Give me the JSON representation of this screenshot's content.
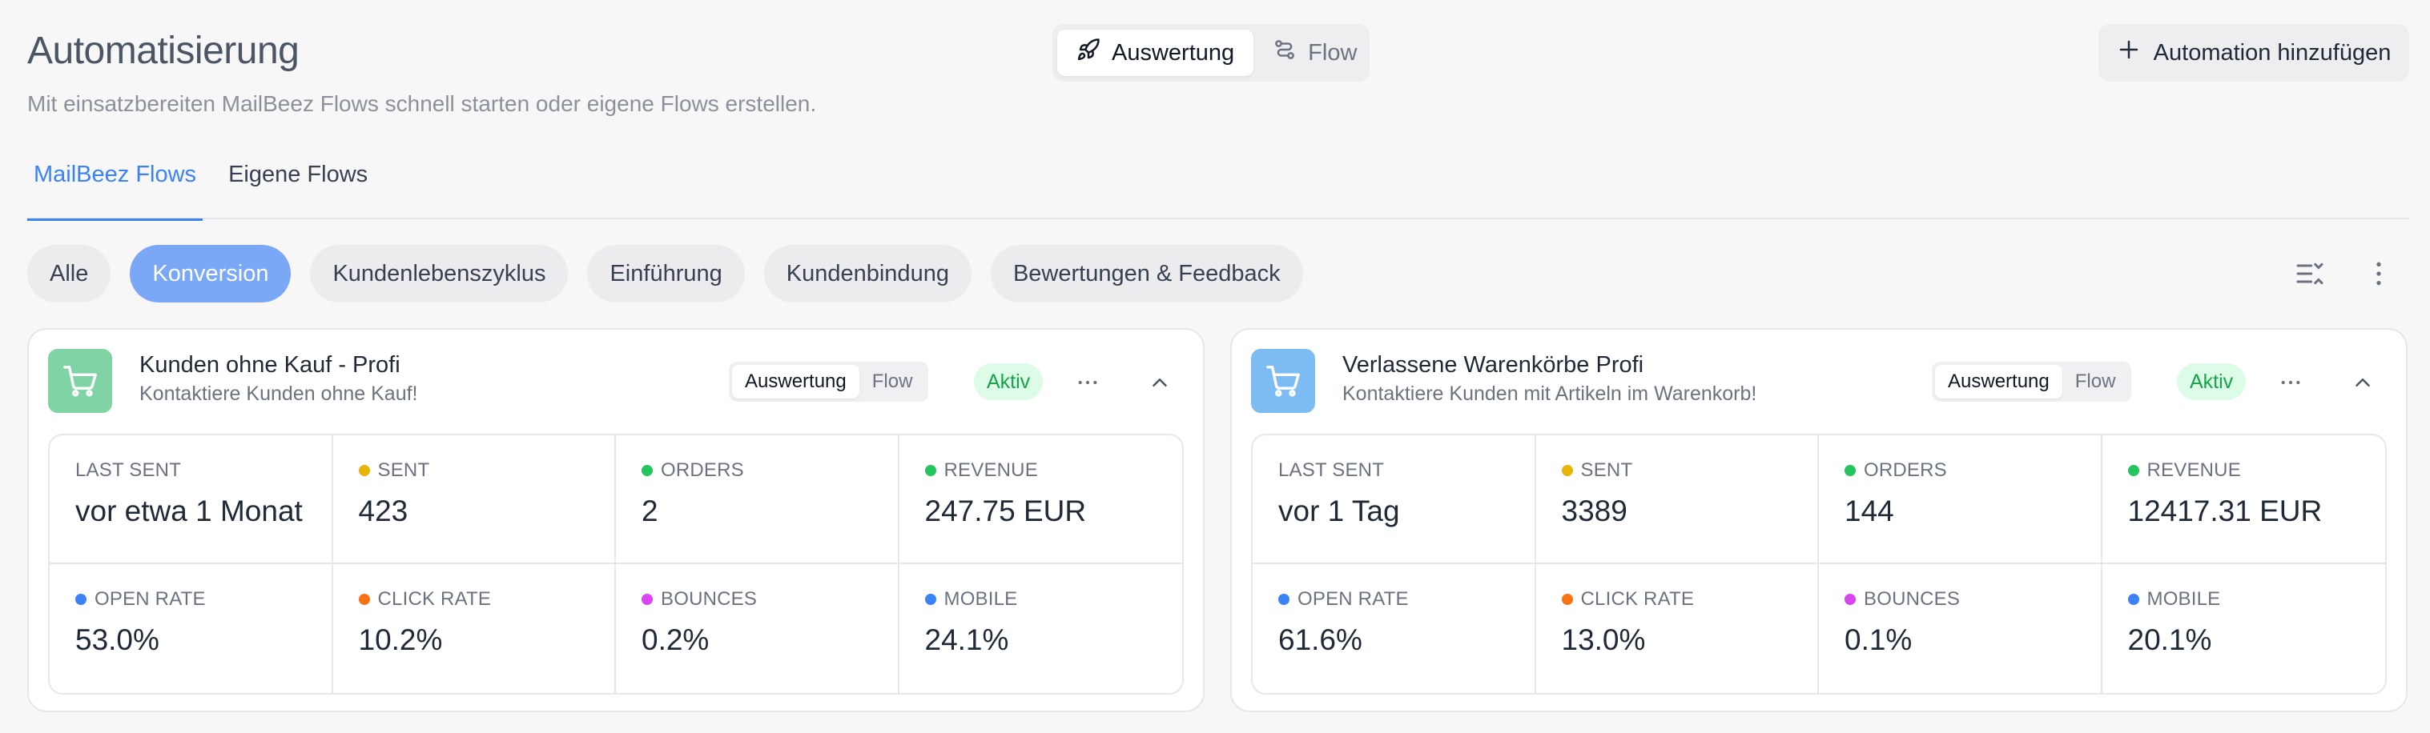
{
  "header": {
    "title": "Automatisierung",
    "subtitle": "Mit einsatzbereiten MailBeez Flows schnell starten oder eigene Flows erstellen.",
    "view_toggle": {
      "auswertung": "Auswertung",
      "flow": "Flow",
      "active": "auswertung"
    },
    "add_button": "Automation hinzufügen"
  },
  "tabs": [
    {
      "label": "MailBeez Flows",
      "active": true
    },
    {
      "label": "Eigene Flows",
      "active": false
    }
  ],
  "filters": [
    {
      "label": "Alle",
      "active": false
    },
    {
      "label": "Konversion",
      "active": true
    },
    {
      "label": "Kundenlebenszyklus",
      "active": false
    },
    {
      "label": "Einführung",
      "active": false
    },
    {
      "label": "Kundenbindung",
      "active": false
    },
    {
      "label": "Bewertungen & Feedback",
      "active": false
    }
  ],
  "colors": {
    "accent": "#3b82f6",
    "chip_active": "#7ba7f7",
    "card1_icon_bg": "#7fd3a4",
    "card2_icon_bg": "#7dbcf3",
    "status_bg": "#dcfce7",
    "status_text": "#16a34a",
    "dot_sent": "#eab308",
    "dot_orders": "#22c55e",
    "dot_revenue": "#22c55e",
    "dot_open": "#3b82f6",
    "dot_click": "#f97316",
    "dot_bounces": "#d946ef",
    "dot_mobile": "#3b82f6"
  },
  "cards": [
    {
      "icon": "shopping-cart-icon",
      "title": "Kunden ohne Kauf - Profi",
      "description": "Kontaktiere Kunden ohne Kauf!",
      "toggle": {
        "auswertung": "Auswertung",
        "flow": "Flow"
      },
      "status": "Aktiv",
      "stats": {
        "last_sent_label": "LAST SENT",
        "last_sent": "vor etwa 1 Monat",
        "sent_label": "SENT",
        "sent": "423",
        "orders_label": "ORDERS",
        "orders": "2",
        "revenue_label": "REVENUE",
        "revenue": "247.75 EUR",
        "open_rate_label": "OPEN RATE",
        "open_rate": "53.0%",
        "click_rate_label": "CLICK RATE",
        "click_rate": "10.2%",
        "bounces_label": "BOUNCES",
        "bounces": "0.2%",
        "mobile_label": "MOBILE",
        "mobile": "24.1%"
      }
    },
    {
      "icon": "shopping-cart-icon",
      "title": "Verlassene Warenkörbe Profi",
      "description": "Kontaktiere Kunden mit Artikeln im Warenkorb!",
      "toggle": {
        "auswertung": "Auswertung",
        "flow": "Flow"
      },
      "status": "Aktiv",
      "stats": {
        "last_sent_label": "LAST SENT",
        "last_sent": "vor 1 Tag",
        "sent_label": "SENT",
        "sent": "3389",
        "orders_label": "ORDERS",
        "orders": "144",
        "revenue_label": "REVENUE",
        "revenue": "12417.31 EUR",
        "open_rate_label": "OPEN RATE",
        "open_rate": "61.6%",
        "click_rate_label": "CLICK RATE",
        "click_rate": "13.0%",
        "bounces_label": "BOUNCES",
        "bounces": "0.1%",
        "mobile_label": "MOBILE",
        "mobile": "20.1%"
      }
    }
  ]
}
